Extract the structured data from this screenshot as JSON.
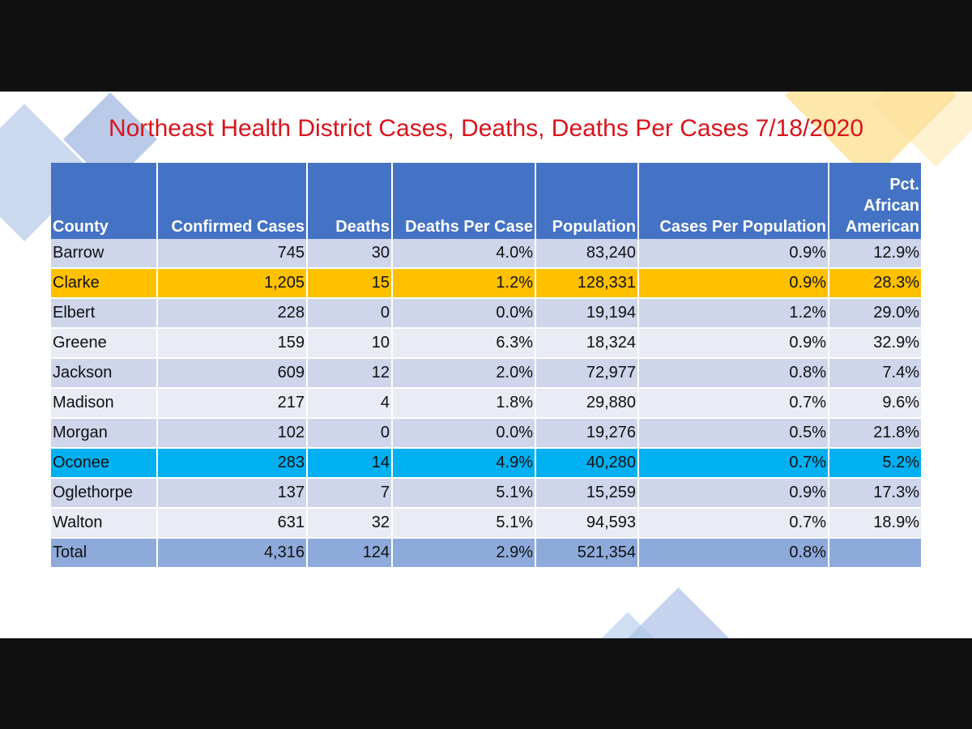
{
  "title": "Northeast Health District Cases, Deaths, Deaths Per Cases 7/18/2020",
  "colors": {
    "title": "#d9141c",
    "header": "#4472c4",
    "band_odd": "#cfd5ea",
    "band_even": "#e9ebf5",
    "clarke_highlight": "#ffc000",
    "oconee_highlight": "#00b0f0",
    "total_row": "#8eaadb"
  },
  "chart_data": {
    "type": "table",
    "title": "Northeast Health District Cases, Deaths, Deaths Per Cases 7/18/2020",
    "columns": [
      "County",
      "Confirmed Cases",
      "Deaths",
      "Deaths Per Case",
      "Population",
      "Cases Per Population",
      "Pct. African American"
    ],
    "rows": [
      [
        "Barrow",
        "745",
        "30",
        "4.0%",
        "83,240",
        "0.9%",
        "12.9%"
      ],
      [
        "Clarke",
        "1,205",
        "15",
        "1.2%",
        "128,331",
        "0.9%",
        "28.3%"
      ],
      [
        "Elbert",
        "228",
        "0",
        "0.0%",
        "19,194",
        "1.2%",
        "29.0%"
      ],
      [
        "Greene",
        "159",
        "10",
        "6.3%",
        "18,324",
        "0.9%",
        "32.9%"
      ],
      [
        "Jackson",
        "609",
        "12",
        "2.0%",
        "72,977",
        "0.8%",
        "7.4%"
      ],
      [
        "Madison",
        "217",
        "4",
        "1.8%",
        "29,880",
        "0.7%",
        "9.6%"
      ],
      [
        "Morgan",
        "102",
        "0",
        "0.0%",
        "19,276",
        "0.5%",
        "21.8%"
      ],
      [
        "Oconee",
        "283",
        "14",
        "4.9%",
        "40,280",
        "0.7%",
        "5.2%"
      ],
      [
        "Oglethorpe",
        "137",
        "7",
        "5.1%",
        "15,259",
        "0.9%",
        "17.3%"
      ],
      [
        "Walton",
        "631",
        "32",
        "5.1%",
        "94,593",
        "0.7%",
        "18.9%"
      ]
    ],
    "total": [
      "Total",
      "4,316",
      "124",
      "2.9%",
      "521,354",
      "0.8%",
      ""
    ],
    "highlighted_rows": {
      "Clarke": "orange",
      "Oconee": "blue"
    }
  }
}
